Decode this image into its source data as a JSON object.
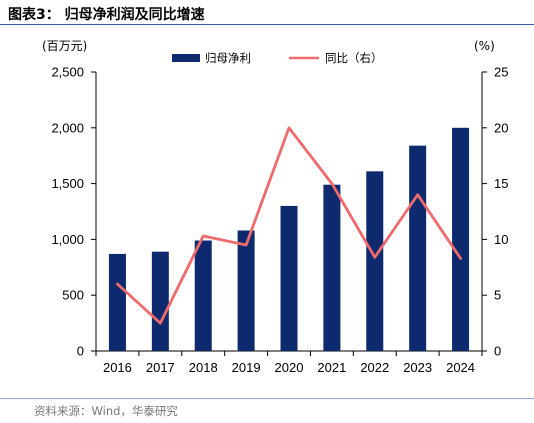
{
  "title": "图表3：  归母净利润及同比增速",
  "source": "资料来源：Wind，华泰研究",
  "colors": {
    "bar": "#0e2a6e",
    "line": "#f0696b"
  },
  "chart_data": {
    "type": "bar",
    "categories": [
      "2016",
      "2017",
      "2018",
      "2019",
      "2020",
      "2021",
      "2022",
      "2023",
      "2024"
    ],
    "series": [
      {
        "name": "归母净利",
        "type": "bar",
        "axis": "left",
        "values": [
          870,
          890,
          990,
          1080,
          1300,
          1490,
          1610,
          1840,
          2000
        ]
      },
      {
        "name": "同比（右）",
        "type": "line",
        "axis": "right",
        "values": [
          6.0,
          2.5,
          10.3,
          9.5,
          20.0,
          15.0,
          8.4,
          14.0,
          8.3
        ]
      }
    ],
    "y_left": {
      "unit": "(百万元)",
      "ticks": [
        "0",
        "500",
        "1,000",
        "1,500",
        "2,000",
        "2,500"
      ],
      "ylim": [
        0,
        2500
      ]
    },
    "y_right": {
      "unit": "(%)",
      "ticks": [
        "0",
        "5",
        "10",
        "15",
        "20",
        "25"
      ],
      "ylim": [
        0,
        25
      ]
    },
    "legend_position": "top"
  }
}
